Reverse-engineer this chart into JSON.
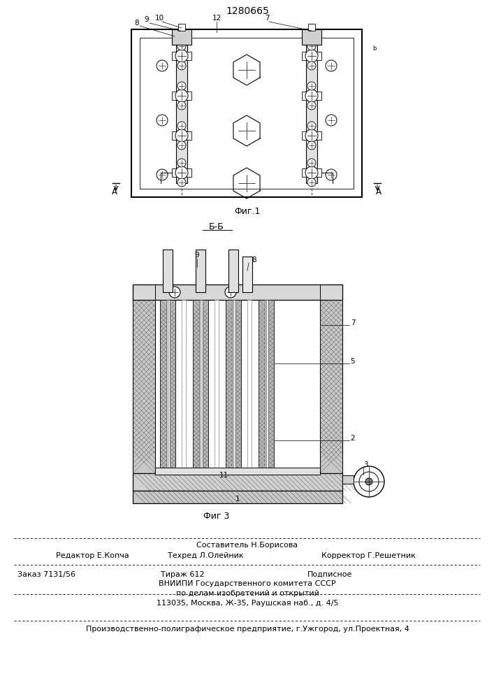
{
  "patent_number": "1280665",
  "fig1_label": "Фиг.1",
  "fig2_label": "Б-Б",
  "fig3_label": "Фиг 3",
  "footer_line1_center": "Составитель Н.Борисова",
  "footer_line1_left": "Редактор Е.Копча",
  "footer_line2_center": "Техред Л.Олейник",
  "footer_line2_right": "Корректор Г.Решетник",
  "footer_line3_left": "Заказ 7131/56",
  "footer_line3_center": "Тираж 612",
  "footer_line3_right": "Подписное",
  "footer_line4": "ВНИИПИ Государственного комитета СССР",
  "footer_line5": "по делам изобретений и открытий",
  "footer_line6": "113035, Москва, Ж-35, Раушская наб., д. 4/5",
  "footer_last": "Производственно-полиграфическое предприятие, г.Ужгород, ул.Проектная, 4",
  "bg_color": "#ffffff"
}
